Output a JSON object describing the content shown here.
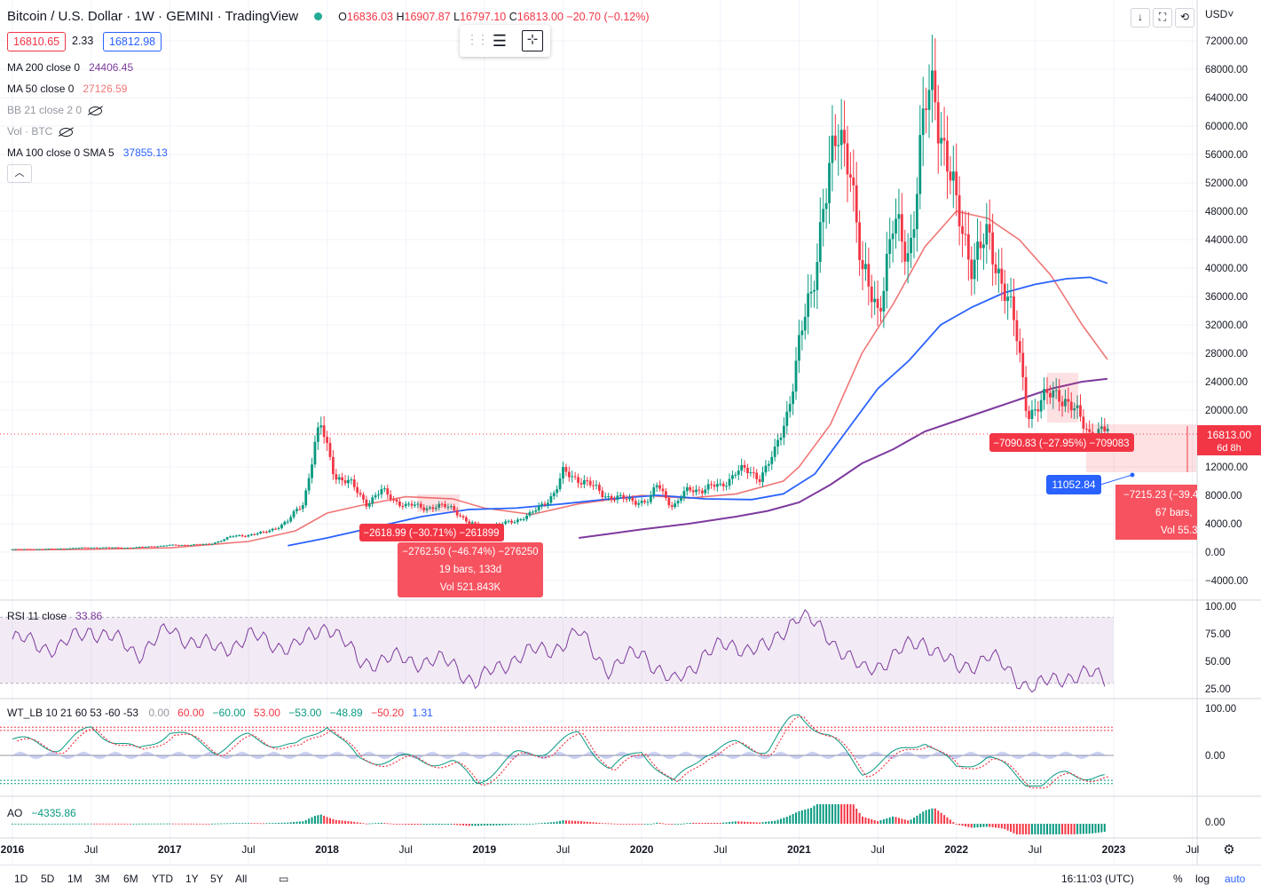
{
  "header": {
    "title": "Bitcoin / U.S. Dollar · 1W · GEMINI · TradingView",
    "open_label": "O",
    "open": "16836.03",
    "high_label": "H",
    "high": "16907.87",
    "low_label": "L",
    "low": "16797.10",
    "close_label": "C",
    "close": "16813.00",
    "change": "−20.70 (−0.12%)",
    "bid": "16810.65",
    "spread": "2.33",
    "ask": "16812.98",
    "currency": "USD˅"
  },
  "indicators": [
    {
      "label": "MA 200 close 0",
      "value": "24406.45",
      "color": "#7e3a9e"
    },
    {
      "label": "MA 50 close 0",
      "value": "27126.59",
      "color": "#f07676"
    },
    {
      "label": "BB 21 close 2 0",
      "value": "",
      "color": "#9598a1"
    },
    {
      "label": "Vol · BTC",
      "value": "",
      "color": "#9598a1"
    },
    {
      "label": "MA 100 close 0 SMA 5",
      "value": "37855.13",
      "color": "#2962ff"
    }
  ],
  "panes": {
    "rsi_label": "RSI 11 close",
    "rsi_value": "33.86",
    "wt_label": "WT_LB 10 21 60 53 -60 -53",
    "wt_values": [
      "0.00",
      "60.00",
      "−60.00",
      "53.00",
      "−53.00",
      "−48.89",
      "−50.20",
      "1.31"
    ],
    "ao_label": "AO",
    "ao_value": "−4335.86"
  },
  "bottom_bar": {
    "ranges": [
      "1D",
      "5D",
      "1M",
      "3M",
      "6M",
      "YTD",
      "1Y",
      "5Y",
      "All"
    ],
    "time": "16:11:03 (UTC)",
    "pct": "%",
    "log": "log",
    "auto": "auto"
  },
  "measurements": [
    {
      "text": "−2618.99 (−30.71%) −261899"
    },
    {
      "lines": [
        "−2762.50 (−46.74%) −276250",
        "19 bars, 133d",
        "Vol 521.843K"
      ]
    },
    {
      "text": "−7090.83 (−27.95%) −709083"
    },
    {
      "lines": [
        "−7215.23 (−39.4",
        "67 bars,",
        "Vol 55.3"
      ]
    },
    {
      "text": "11052.84"
    }
  ],
  "price_tag": {
    "price": "16813.00",
    "countdown": "6d 8h"
  },
  "chart_data": {
    "type": "line",
    "title": "Bitcoin / U.S. Dollar · 1W · GEMINI",
    "price_axis": {
      "ticks": [
        "72000.00",
        "68000.00",
        "64000.00",
        "60000.00",
        "56000.00",
        "52000.00",
        "48000.00",
        "44000.00",
        "40000.00",
        "36000.00",
        "32000.00",
        "28000.00",
        "24000.00",
        "20000.00",
        "12000.00",
        "8000.00",
        "4000.00",
        "0.00",
        "−4000.00"
      ],
      "ylim": [
        -6000,
        73000
      ]
    },
    "time_axis": {
      "ticks": [
        "2016",
        "Jul",
        "2017",
        "Jul",
        "2018",
        "Jul",
        "2019",
        "Jul",
        "2020",
        "Jul",
        "2021",
        "Jul",
        "2022",
        "Jul",
        "2023",
        "Jul"
      ],
      "ticks_num": [
        2016,
        2016.5,
        2017,
        2017.5,
        2018,
        2018.5,
        2019,
        2019.5,
        2020,
        2020.5,
        2021,
        2021.5,
        2022,
        2022.5,
        2023,
        2023.5
      ]
    },
    "price_series": {
      "name": "BTCUSD weekly",
      "x": [
        2016.0,
        2016.25,
        2016.5,
        2016.75,
        2017.0,
        2017.25,
        2017.4,
        2017.6,
        2017.75,
        2017.85,
        2017.92,
        2017.96,
        2018.05,
        2018.15,
        2018.25,
        2018.35,
        2018.5,
        2018.6,
        2018.8,
        2018.9,
        2018.96,
        2019.1,
        2019.3,
        2019.45,
        2019.5,
        2019.6,
        2019.75,
        2019.9,
        2020.05,
        2020.1,
        2020.2,
        2020.3,
        2020.5,
        2020.6,
        2020.75,
        2020.85,
        2020.92,
        2021.0,
        2021.08,
        2021.15,
        2021.25,
        2021.32,
        2021.4,
        2021.5,
        2021.6,
        2021.7,
        2021.8,
        2021.86,
        2021.93,
        2022.0,
        2022.1,
        2022.2,
        2022.3,
        2022.38,
        2022.45,
        2022.55,
        2022.65,
        2022.75,
        2022.85,
        2022.93
      ],
      "values": [
        400,
        450,
        660,
        620,
        960,
        1100,
        2200,
        2700,
        4300,
        7000,
        15000,
        17500,
        11000,
        9500,
        7000,
        8500,
        6500,
        6400,
        6300,
        4000,
        3700,
        3800,
        5300,
        8500,
        11000,
        10500,
        8200,
        7300,
        7200,
        9500,
        6400,
        8800,
        9200,
        11500,
        10800,
        13800,
        19500,
        29000,
        36000,
        50000,
        57000,
        58000,
        38000,
        35000,
        45000,
        43000,
        61000,
        66000,
        57000,
        47000,
        42000,
        43000,
        39000,
        30000,
        20000,
        21000,
        23000,
        19500,
        17000,
        16813
      ],
      "ylim": [
        -6000,
        73000
      ]
    },
    "series": [
      {
        "name": "MA 200",
        "color": "#7e3a9e",
        "x": [
          2019.6,
          2019.8,
          2020.0,
          2020.3,
          2020.6,
          2020.8,
          2021.0,
          2021.2,
          2021.4,
          2021.6,
          2021.8,
          2022.0,
          2022.2,
          2022.4,
          2022.6,
          2022.8,
          2022.96
        ],
        "values": [
          2000,
          2600,
          3200,
          4000,
          5000,
          5800,
          7000,
          9500,
          12500,
          14500,
          17000,
          18500,
          20000,
          21500,
          23000,
          24000,
          24406
        ]
      },
      {
        "name": "MA 50",
        "color": "#f07676",
        "x": [
          2016.0,
          2016.5,
          2017.0,
          2017.5,
          2017.8,
          2018.0,
          2018.2,
          2018.5,
          2018.8,
          2019.0,
          2019.3,
          2019.6,
          2020.0,
          2020.3,
          2020.6,
          2020.9,
          2021.0,
          2021.2,
          2021.4,
          2021.6,
          2021.8,
          2022.0,
          2022.2,
          2022.4,
          2022.6,
          2022.8,
          2022.96
        ],
        "values": [
          300,
          400,
          600,
          1500,
          3000,
          5500,
          6500,
          7800,
          7500,
          6200,
          5300,
          6800,
          8000,
          7600,
          8200,
          10000,
          12000,
          18000,
          28000,
          35000,
          43000,
          48000,
          47000,
          44000,
          39000,
          32000,
          27127
        ]
      },
      {
        "name": "MA 100",
        "color": "#2962ff",
        "x": [
          2017.75,
          2018.0,
          2018.3,
          2018.6,
          2018.9,
          2019.2,
          2019.5,
          2019.8,
          2020.1,
          2020.4,
          2020.7,
          2020.9,
          2021.1,
          2021.3,
          2021.5,
          2021.7,
          2021.9,
          2022.1,
          2022.3,
          2022.5,
          2022.7,
          2022.85,
          2022.96
        ],
        "values": [
          900,
          2000,
          3500,
          5000,
          6000,
          6200,
          6800,
          7500,
          8000,
          7500,
          7400,
          8200,
          11000,
          17000,
          23000,
          27000,
          32000,
          34500,
          36500,
          37700,
          38500,
          38700,
          37855
        ]
      },
      {
        "name": "RSI",
        "color": "#7e3a9e",
        "x": [
          2016.0,
          2016.3,
          2016.5,
          2016.8,
          2017.0,
          2017.3,
          2017.5,
          2017.8,
          2018.0,
          2018.2,
          2018.5,
          2018.8,
          2018.95,
          2019.2,
          2019.4,
          2019.6,
          2019.8,
          2020.0,
          2020.2,
          2020.4,
          2020.6,
          2020.8,
          2020.95,
          2021.0,
          2021.2,
          2021.4,
          2021.6,
          2021.8,
          2022.0,
          2022.2,
          2022.4,
          2022.5,
          2022.7,
          2022.9,
          2022.96
        ],
        "values": [
          70,
          62,
          80,
          58,
          78,
          60,
          72,
          62,
          85,
          50,
          52,
          48,
          30,
          55,
          60,
          75,
          42,
          60,
          28,
          58,
          65,
          60,
          88,
          92,
          72,
          40,
          55,
          70,
          42,
          55,
          34,
          25,
          38,
          36,
          33.86
        ],
        "ylim": [
          20,
          100
        ]
      }
    ]
  }
}
